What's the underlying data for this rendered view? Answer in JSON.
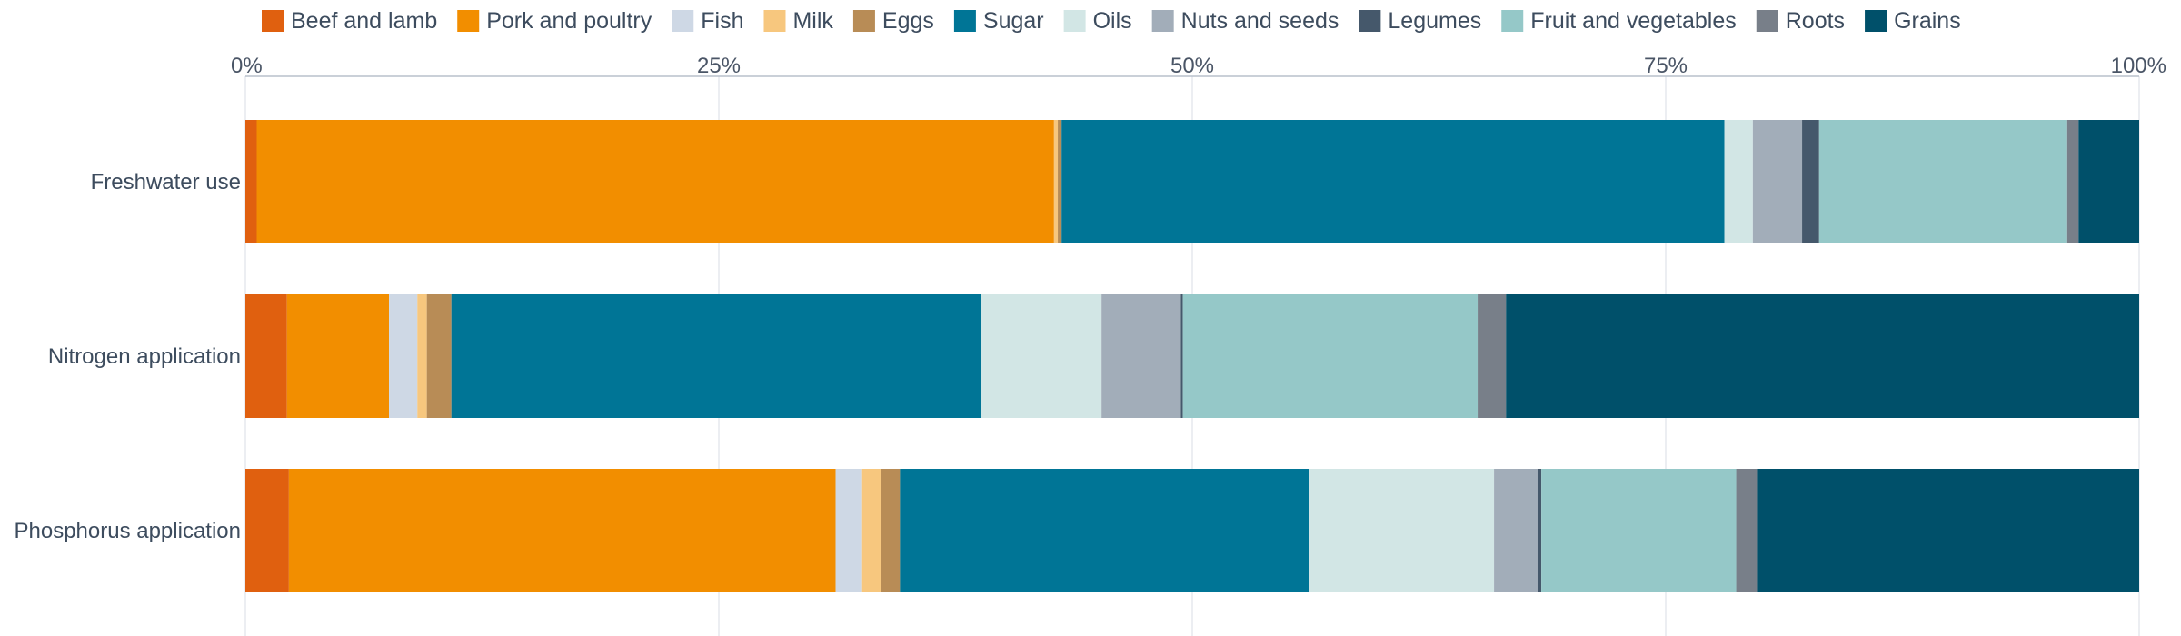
{
  "chart_data": {
    "type": "bar",
    "orientation": "horizontal",
    "stacked": true,
    "categories": [
      "Freshwater use",
      "Nitrogen application",
      "Phosphorus application"
    ],
    "xlim": [
      0,
      100
    ],
    "x_ticks": [
      0,
      25,
      50,
      75,
      100
    ],
    "x_tick_labels": [
      "0%",
      "25%",
      "50%",
      "75%",
      "100%"
    ],
    "grid": true,
    "legend_position": "top",
    "series": [
      {
        "name": "Beef and lamb",
        "color": "#e0600f",
        "values": [
          0.6,
          2.2,
          2.3
        ]
      },
      {
        "name": "Pork and poultry",
        "color": "#f28e00",
        "values": [
          42.1,
          5.4,
          28.9
        ]
      },
      {
        "name": "Fish",
        "color": "#ced8e5",
        "values": [
          0.0,
          1.5,
          1.4
        ]
      },
      {
        "name": "Milk",
        "color": "#f7c77e",
        "values": [
          0.2,
          0.5,
          1.0
        ]
      },
      {
        "name": "Eggs",
        "color": "#b88c56",
        "values": [
          0.2,
          1.3,
          1.0
        ]
      },
      {
        "name": "Sugar",
        "color": "#007596",
        "values": [
          35.0,
          28.0,
          21.6
        ]
      },
      {
        "name": "Oils",
        "color": "#d2e6e5",
        "values": [
          1.5,
          6.4,
          9.8
        ]
      },
      {
        "name": "Nuts and seeds",
        "color": "#a2adb9",
        "values": [
          2.6,
          4.2,
          2.3
        ]
      },
      {
        "name": "Legumes",
        "color": "#45586b",
        "values": [
          0.9,
          0.1,
          0.2
        ]
      },
      {
        "name": "Fruit and vegetables",
        "color": "#95c8c8",
        "values": [
          13.1,
          15.6,
          10.3
        ]
      },
      {
        "name": "Roots",
        "color": "#787f89",
        "values": [
          0.6,
          1.5,
          1.1
        ]
      },
      {
        "name": "Grains",
        "color": "#00506a",
        "values": [
          3.2,
          33.5,
          20.2
        ]
      }
    ]
  }
}
